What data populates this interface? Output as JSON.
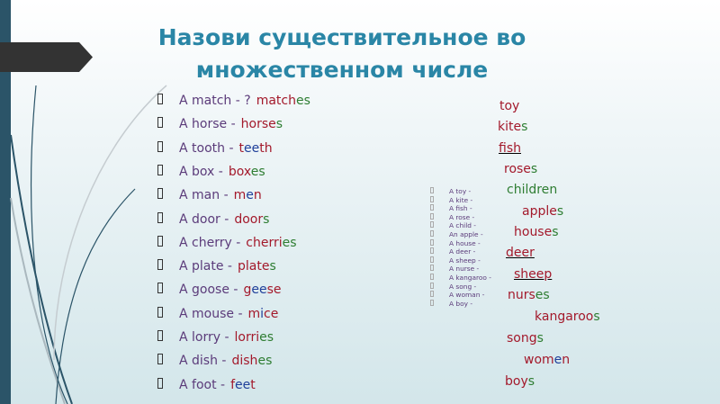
{
  "title": "Назови существительное во множественном числе",
  "colors": {
    "red": "#a3192b",
    "green": "#2e7d32",
    "blue": "#1f3f9a",
    "title": "#2a86a6",
    "prompt": "#5b3b7a"
  },
  "left_items": [
    {
      "prompt": "A match - ?",
      "answer": [
        {
          "t": "match",
          "c": "red"
        },
        {
          "t": "es",
          "c": "green"
        }
      ]
    },
    {
      "prompt": "A horse -",
      "answer": [
        {
          "t": "horse",
          "c": "red"
        },
        {
          "t": "s",
          "c": "green"
        }
      ]
    },
    {
      "prompt": "A tooth -",
      "answer": [
        {
          "t": "t",
          "c": "red"
        },
        {
          "t": "ee",
          "c": "blue"
        },
        {
          "t": "t",
          "c": "red"
        },
        {
          "t": "h",
          "c": "red"
        }
      ]
    },
    {
      "prompt": "A box -",
      "answer": [
        {
          "t": "box",
          "c": "red"
        },
        {
          "t": "e",
          "c": "green"
        },
        {
          "t": "s",
          "c": "green"
        }
      ]
    },
    {
      "prompt": "A man -",
      "answer": [
        {
          "t": "m",
          "c": "red"
        },
        {
          "t": "e",
          "c": "blue"
        },
        {
          "t": "n",
          "c": "red"
        }
      ]
    },
    {
      "prompt": "A door -",
      "answer": [
        {
          "t": "door",
          "c": "red"
        },
        {
          "t": "s",
          "c": "green"
        }
      ]
    },
    {
      "prompt": "A cherry -",
      "answer": [
        {
          "t": "cherri",
          "c": "red"
        },
        {
          "t": "e",
          "c": "green"
        },
        {
          "t": "s",
          "c": "green"
        }
      ]
    },
    {
      "prompt": "A plate -",
      "answer": [
        {
          "t": "plate",
          "c": "red"
        },
        {
          "t": "s",
          "c": "green"
        }
      ]
    },
    {
      "prompt": "A goose -",
      "answer": [
        {
          "t": "g",
          "c": "red"
        },
        {
          "t": "ee",
          "c": "blue"
        },
        {
          "t": "s",
          "c": "red"
        },
        {
          "t": "e",
          "c": "red"
        }
      ]
    },
    {
      "prompt": "A mouse -",
      "answer": [
        {
          "t": "m",
          "c": "red"
        },
        {
          "t": "i",
          "c": "blue"
        },
        {
          "t": "ce",
          "c": "red"
        }
      ]
    },
    {
      "prompt": "A lorry -",
      "answer": [
        {
          "t": "lorri",
          "c": "red"
        },
        {
          "t": "es",
          "c": "green"
        }
      ]
    },
    {
      "prompt": "A dish -",
      "answer": [
        {
          "t": "dish",
          "c": "red"
        },
        {
          "t": "e",
          "c": "green"
        },
        {
          "t": "s",
          "c": "green"
        }
      ]
    },
    {
      "prompt": "A foot -",
      "answer": [
        {
          "t": "f",
          "c": "red"
        },
        {
          "t": "ee",
          "c": "blue"
        },
        {
          "t": "t",
          "c": "red"
        }
      ]
    }
  ],
  "small_items": [
    "A toy -",
    "A kite -",
    "A fish -",
    "A rose -",
    "A child -",
    "An apple -",
    "A house -",
    "A deer -",
    "A sheep -",
    "A nurse -",
    "A kangaroo -",
    "A song -",
    "A woman -",
    "A boy -"
  ],
  "right_answers": [
    [
      {
        "t": "toy",
        "c": "red"
      }
    ],
    [
      {
        "t": "kite",
        "c": "red"
      },
      {
        "t": "s",
        "c": "green"
      }
    ],
    [
      {
        "t": "fish",
        "c": "red"
      }
    ],
    [
      {
        "t": "rose",
        "c": "red"
      },
      {
        "t": "s",
        "c": "green"
      }
    ],
    [
      {
        "t": "childre",
        "c": "green"
      },
      {
        "t": "n",
        "c": "green"
      }
    ],
    [
      {
        "t": "apple",
        "c": "red"
      },
      {
        "t": "s",
        "c": "green"
      }
    ],
    [
      {
        "t": "house",
        "c": "red"
      },
      {
        "t": "s",
        "c": "green"
      }
    ],
    [
      {
        "t": "deer",
        "c": "red"
      }
    ],
    [
      {
        "t": "sheep",
        "c": "red"
      }
    ],
    [
      {
        "t": "nurs",
        "c": "red"
      },
      {
        "t": "es",
        "c": "green"
      }
    ],
    [
      {
        "t": "kangaroo",
        "c": "red"
      },
      {
        "t": "s",
        "c": "green"
      }
    ],
    [
      {
        "t": "song",
        "c": "red"
      },
      {
        "t": "s",
        "c": "green"
      }
    ],
    [
      {
        "t": "wom",
        "c": "red"
      },
      {
        "t": "e",
        "c": "blue"
      },
      {
        "t": "n",
        "c": "red"
      }
    ],
    [
      {
        "t": "boy",
        "c": "red"
      },
      {
        "t": "s",
        "c": "green"
      }
    ]
  ]
}
